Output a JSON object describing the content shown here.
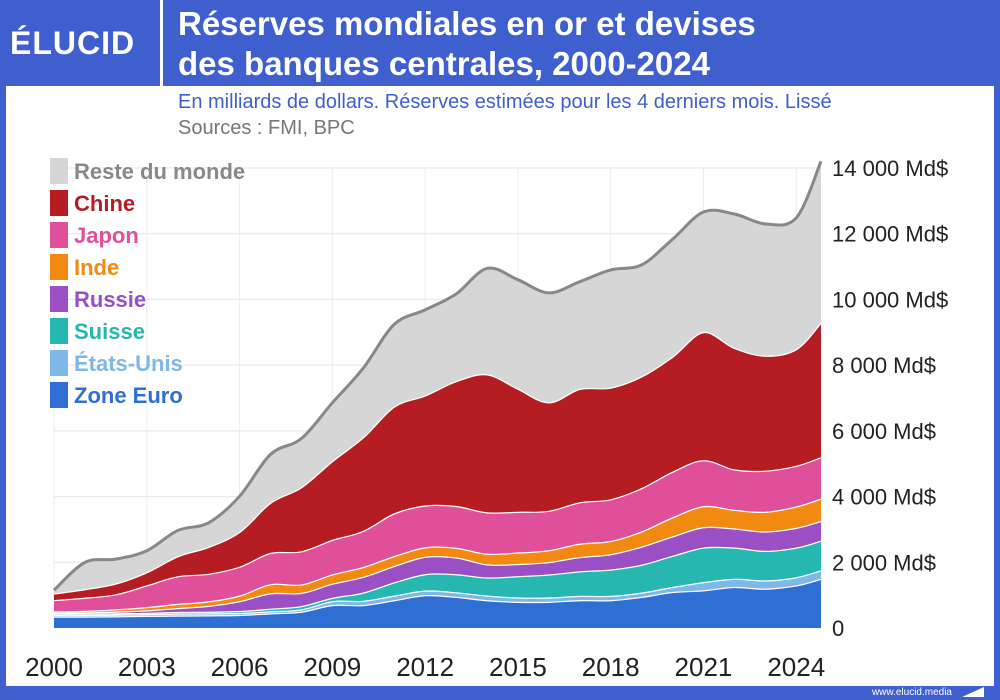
{
  "brand": {
    "logo": "ÉLUCID",
    "site": "www.elucid.media"
  },
  "chart_data": {
    "type": "area",
    "stacked": true,
    "title": "Réserves mondiales en or et devises des banques centrales, 2000-2024",
    "title_lines": [
      "Réserves mondiales en or et devises",
      "des banques centrales, 2000-2024"
    ],
    "subtitle": "En milliards de dollars. Réserves estimées pour les 4 derniers mois. Lissé",
    "sources": "Sources : FMI, BPC",
    "unit": "Md$",
    "xlim": [
      2000,
      2024.8
    ],
    "ylim": [
      0,
      14000
    ],
    "x_ticks": [
      2000,
      2003,
      2006,
      2009,
      2012,
      2015,
      2018,
      2021,
      2024
    ],
    "x_tick_labels": [
      "2000",
      "2003",
      "2006",
      "2009",
      "2012",
      "2015",
      "2018",
      "2021",
      "2024"
    ],
    "y_ticks": [
      0,
      2000,
      4000,
      6000,
      8000,
      10000,
      12000,
      14000
    ],
    "y_tick_labels": [
      "0",
      "2 000 Md$",
      "4 000 Md$",
      "6 000 Md$",
      "8 000 Md$",
      "10 000 Md$",
      "12 000 Md$",
      "14 000 Md$"
    ],
    "grid": true,
    "legend_position": "top-left",
    "x": [
      2000,
      2001,
      2002,
      2003,
      2004,
      2005,
      2006,
      2007,
      2008,
      2009,
      2010,
      2011,
      2012,
      2013,
      2014,
      2015,
      2016,
      2017,
      2018,
      2019,
      2020,
      2021,
      2022,
      2023,
      2024,
      2024.8
    ],
    "series_bottom_to_top": [
      {
        "name": "Zone Euro",
        "color": "#2f6fd3",
        "values": [
          350,
          350,
          360,
          370,
          380,
          390,
          400,
          450,
          500,
          700,
          700,
          850,
          1000,
          950,
          850,
          800,
          800,
          850,
          850,
          950,
          1100,
          1150,
          1250,
          1200,
          1300,
          1500
        ]
      },
      {
        "name": "États-Unis",
        "color": "#7fb8e8",
        "values": [
          50,
          50,
          50,
          55,
          60,
          60,
          60,
          60,
          70,
          120,
          130,
          140,
          140,
          140,
          140,
          130,
          130,
          130,
          130,
          130,
          150,
          250,
          250,
          250,
          250,
          260
        ]
      },
      {
        "name": "Suisse",
        "color": "#26b8b0",
        "values": [
          40,
          40,
          40,
          40,
          50,
          50,
          60,
          80,
          100,
          100,
          250,
          400,
          500,
          550,
          550,
          650,
          700,
          750,
          800,
          850,
          950,
          1050,
          950,
          900,
          900,
          900
        ]
      },
      {
        "name": "Russie",
        "color": "#9a4fc4",
        "values": [
          25,
          40,
          50,
          75,
          120,
          180,
          300,
          470,
          400,
          430,
          480,
          500,
          530,
          510,
          400,
          370,
          380,
          430,
          470,
          550,
          590,
          620,
          580,
          590,
          600,
          600
        ]
      },
      {
        "name": "Inde",
        "color": "#f28a12",
        "values": [
          38,
          45,
          68,
          100,
          126,
          132,
          170,
          275,
          257,
          283,
          300,
          300,
          290,
          295,
          325,
          350,
          360,
          410,
          400,
          460,
          580,
          640,
          570,
          600,
          650,
          680
        ]
      },
      {
        "name": "Japon",
        "color": "#e0509a",
        "values": [
          350,
          400,
          460,
          660,
          840,
          840,
          880,
          950,
          1010,
          1050,
          1100,
          1300,
          1270,
          1270,
          1260,
          1240,
          1200,
          1260,
          1270,
          1320,
          1390,
          1400,
          1230,
          1250,
          1240,
          1260
        ]
      },
      {
        "name": "Chine",
        "color": "#b51d23",
        "values": [
          200,
          260,
          330,
          400,
          610,
          820,
          1060,
          1530,
          1950,
          2400,
          2850,
          3250,
          3350,
          3800,
          4200,
          3750,
          3300,
          3450,
          3400,
          3400,
          3500,
          3900,
          3700,
          3500,
          3550,
          4100
        ]
      },
      {
        "name": "Reste du monde",
        "color": "#d6d6d6",
        "values": [
          100,
          810,
          740,
          650,
          780,
          730,
          1080,
          1470,
          1480,
          1770,
          2100,
          2500,
          2600,
          2650,
          3220,
          3310,
          3330,
          3260,
          3580,
          3390,
          3570,
          3650,
          4070,
          4010,
          3990,
          4900
        ]
      }
    ],
    "legend_order": [
      "Reste du monde",
      "Chine",
      "Japon",
      "Inde",
      "Russie",
      "Suisse",
      "États-Unis",
      "Zone Euro"
    ]
  }
}
